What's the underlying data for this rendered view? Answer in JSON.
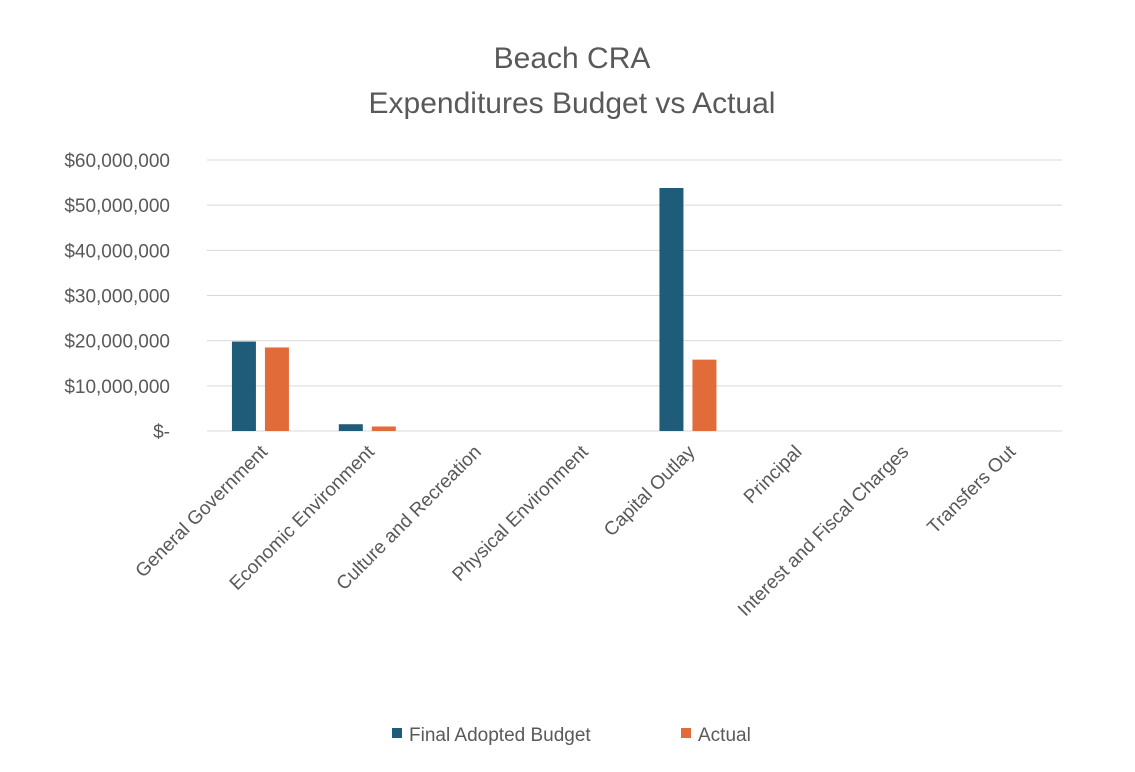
{
  "chart_data": {
    "type": "bar",
    "title_line1": "Beach CRA",
    "title_line2": "Expenditures Budget vs Actual",
    "xlabel": "",
    "ylabel": "",
    "categories": [
      "General Government",
      "Economic Environment",
      "Culture and Recreation",
      "Physical Environment",
      "Capital Outlay",
      "Principal",
      "Interest and Fiscal Charges",
      "Transfers Out"
    ],
    "series": [
      {
        "name": "Final Adopted Budget",
        "color": "#1f5c7a",
        "values": [
          19800000,
          1500000,
          0,
          0,
          53800000,
          0,
          0,
          0
        ]
      },
      {
        "name": "Actual",
        "color": "#e26b3a",
        "values": [
          18500000,
          1000000,
          0,
          0,
          15800000,
          0,
          0,
          0
        ]
      }
    ],
    "ylim": [
      0,
      60000000
    ],
    "yticks": [
      0,
      10000000,
      20000000,
      30000000,
      40000000,
      50000000,
      60000000
    ],
    "ytick_labels": [
      "$-",
      "$10,000,000",
      "$20,000,000",
      "$30,000,000",
      "$40,000,000",
      "$50,000,000",
      "$60,000,000"
    ],
    "grid": true,
    "legend_position": "bottom"
  }
}
